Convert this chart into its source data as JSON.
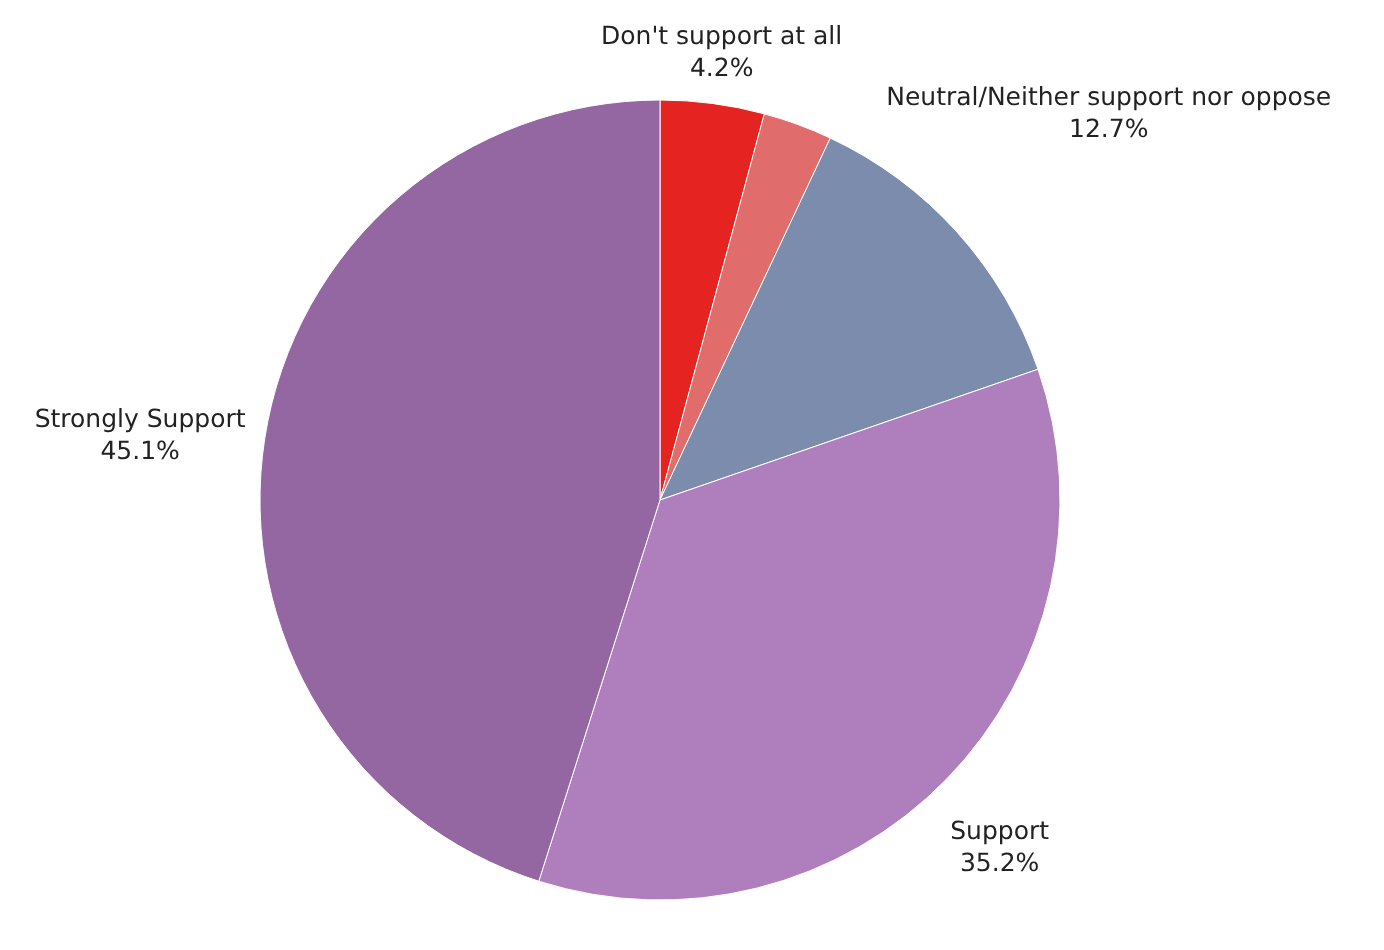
{
  "chart_data": {
    "type": "pie",
    "categories": [
      "Don't support at all",
      null,
      "Neutral/Neither support nor oppose",
      "Support",
      "Strongly Support"
    ],
    "values": [
      4.2,
      2.8,
      12.7,
      35.2,
      45.1
    ],
    "value_labels": [
      "4.2%",
      null,
      "12.7%",
      "35.2%",
      "45.1%"
    ],
    "colors": [
      "#e52421",
      "#e06c6c",
      "#7c8cac",
      "#ae7fbc",
      "#9466a2"
    ]
  }
}
